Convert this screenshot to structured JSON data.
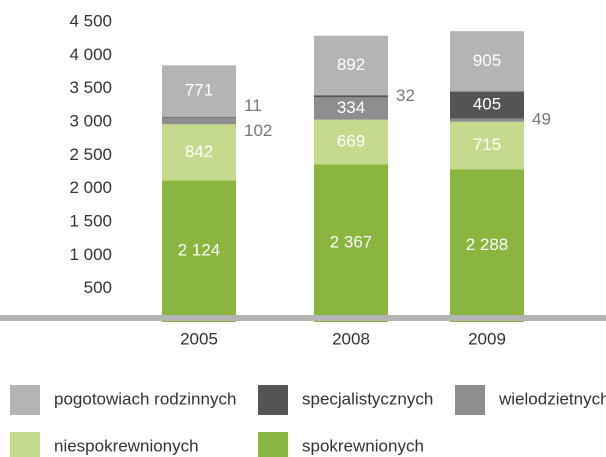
{
  "chart_data": {
    "type": "stacked_bar",
    "categories": [
      "2005",
      "2008",
      "2009"
    ],
    "series": [
      {
        "name": "spokrewnionych",
        "color": "#8ab63f",
        "values": [
          2124,
          2367,
          2288
        ],
        "value_labels": [
          "2 124",
          "2 367",
          "2 288"
        ]
      },
      {
        "name": "niespokrewnionych",
        "color": "#c6da8e",
        "values": [
          842,
          669,
          715
        ]
      },
      {
        "name": "wielodzietnych",
        "color": "#8e8e8e",
        "values": [
          102,
          334,
          49
        ]
      },
      {
        "name": "specjalistycznych",
        "color": "#545454",
        "values": [
          11,
          32,
          405
        ]
      },
      {
        "name": "pogotowiach rodzinnych",
        "color": "#b4b4b4",
        "values": [
          771,
          892,
          905
        ]
      }
    ],
    "ylim": [
      0,
      4500
    ],
    "yticks": [
      {
        "value": 500,
        "label": "500"
      },
      {
        "value": 1000,
        "label": "1 000"
      },
      {
        "value": 1500,
        "label": "1 500"
      },
      {
        "value": 2000,
        "label": "2 000"
      },
      {
        "value": 2500,
        "label": "2 500"
      },
      {
        "value": 3000,
        "label": "3 000"
      },
      {
        "value": 3500,
        "label": "3 500"
      },
      {
        "value": 4000,
        "label": "4 000"
      },
      {
        "value": 4500,
        "label": "4 500"
      }
    ],
    "legend_order": [
      4,
      3,
      2,
      1,
      0
    ]
  }
}
